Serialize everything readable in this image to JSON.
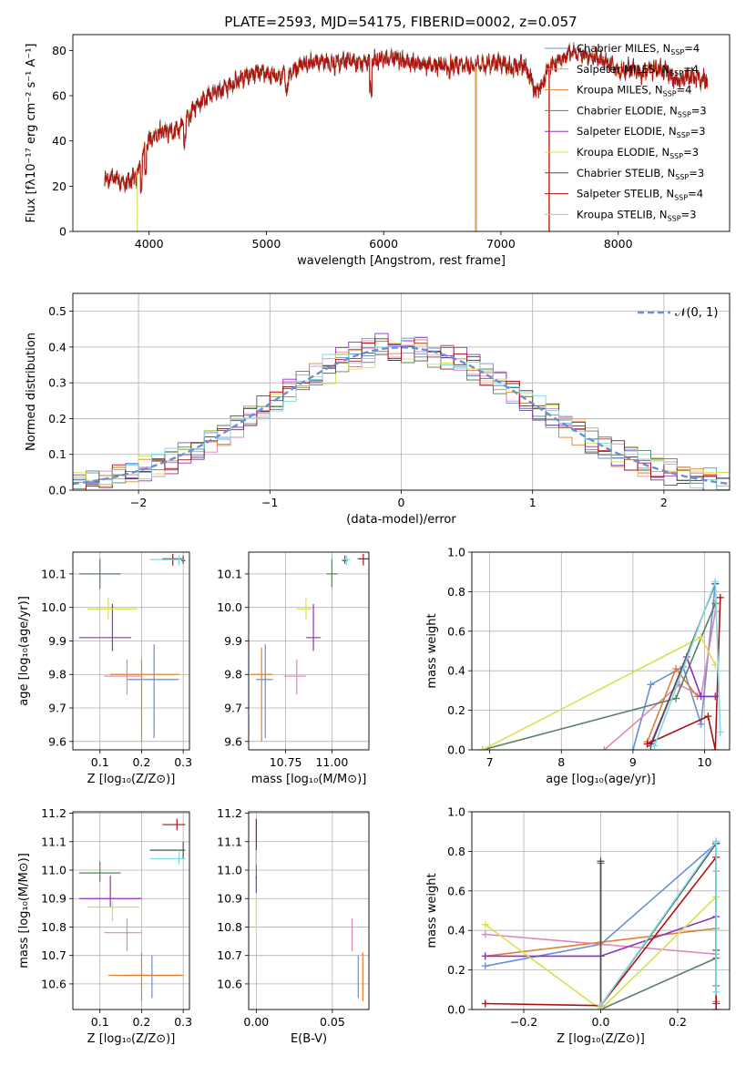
{
  "title": "PLATE=2593, MJD=54175, FIBERID=0002, z=0.057",
  "colors": [
    "#6a8ed8",
    "#e085b8",
    "#e08030",
    "#5a8060",
    "#9030c0",
    "#d8e050",
    "#505050",
    "#b01010",
    "#80d8e0"
  ],
  "chart_data": [
    {
      "id": "spectrum",
      "type": "line",
      "xlabel": "wavelength [Angstrom, rest frame]",
      "ylabel": "Flux [fλ10⁻¹⁷ erg cm⁻² s⁻¹ A⁻¹]",
      "xlim": [
        3350,
        8950
      ],
      "ylim": [
        0,
        87
      ],
      "xticks": [
        "4000",
        "5000",
        "6000",
        "7000",
        "8000"
      ],
      "yticks": [
        "0",
        "20",
        "40",
        "60",
        "80"
      ],
      "grid": false,
      "legend_position": "right",
      "continuum": {
        "x": [
          3620,
          3700,
          3800,
          3900,
          3950,
          4000,
          4100,
          4200,
          4300,
          4400,
          4500,
          4600,
          4700,
          4800,
          4900,
          5000,
          5100,
          5200,
          5300,
          5400,
          5500,
          5600,
          5700,
          5800,
          5900,
          6000,
          6100,
          6200,
          6300,
          6400,
          6500,
          6600,
          6700,
          6800,
          6900,
          7000,
          7100,
          7200,
          7300,
          7350,
          7400,
          7500,
          7600,
          7700,
          7800,
          7900,
          8000,
          8100,
          8200,
          8300,
          8400,
          8500,
          8600,
          8700,
          8760
        ],
        "y": [
          22,
          24,
          21,
          25,
          34,
          40,
          44,
          44,
          47,
          56,
          60,
          62,
          65,
          68,
          70,
          70,
          68,
          70,
          74,
          75,
          75,
          74,
          76,
          74,
          76,
          76,
          77,
          75,
          74,
          74,
          73,
          74,
          73,
          73,
          74,
          75,
          72,
          74,
          62,
          64,
          72,
          76,
          79,
          78,
          77,
          75,
          71,
          72,
          70,
          72,
          71,
          66,
          69,
          67,
          67
        ]
      },
      "legend": [
        {
          "main": "Chabrier MILES, N",
          "sub": "SSP",
          "tail": "=4"
        },
        {
          "main": "Salpeter MILES, N",
          "sub": "SSP",
          "tail": "=4"
        },
        {
          "main": "Kroupa MILES, N",
          "sub": "SSP",
          "tail": "=4"
        },
        {
          "main": "Chabrier ELODIE, N",
          "sub": "SSP",
          "tail": "=3"
        },
        {
          "main": "Salpeter ELODIE, N",
          "sub": "SSP",
          "tail": "=3"
        },
        {
          "main": "Kroupa ELODIE, N",
          "sub": "SSP",
          "tail": "=3"
        },
        {
          "main": "Chabrier STELIB, N",
          "sub": "SSP",
          "tail": "=3"
        },
        {
          "main": "Salpeter STELIB, N",
          "sub": "SSP",
          "tail": "=4"
        },
        {
          "main": "Kroupa STELIB, N",
          "sub": "SSP",
          "tail": "=3"
        }
      ],
      "drops": [
        {
          "x": 3900,
          "color": 5
        },
        {
          "x": 6780,
          "color": 5
        },
        {
          "x": 6790,
          "color": 2
        },
        {
          "x": 7410,
          "color": 7
        },
        {
          "x": 7415,
          "color": 2
        }
      ]
    },
    {
      "id": "residuals",
      "type": "area",
      "xlabel": "(data-model)/error",
      "ylabel": "Normed distribution",
      "xlim": [
        -2.5,
        2.5
      ],
      "ylim": [
        0,
        0.55
      ],
      "xticks": [
        "−2",
        "−1",
        "0",
        "1",
        "2"
      ],
      "yticks": [
        "0.0",
        "0.1",
        "0.2",
        "0.3",
        "0.4",
        "0.5"
      ],
      "grid": true,
      "legend_position": "top-right",
      "legend_label": "𝒩(0, 1)",
      "bin_width": 0.1
    },
    {
      "id": "age-vs-Z",
      "type": "scatter",
      "xlabel": "Z [log₁₀(Z/Z⊙)]",
      "ylabel": "age  [log₁₀(age/yr)]",
      "xlim": [
        0.035,
        0.315
      ],
      "ylim": [
        9.575,
        10.165
      ],
      "xticks": [
        "0.1",
        "0.2",
        "0.3"
      ],
      "yticks": [
        "9.6",
        "9.7",
        "9.8",
        "9.9",
        "10.0",
        "10.1"
      ],
      "grid": true,
      "points": [
        {
          "c": 0,
          "x": 0.23,
          "xe": [
            0.165,
            0.29
          ],
          "y": 9.785,
          "ye": [
            9.61,
            9.89
          ]
        },
        {
          "c": 1,
          "x": 0.165,
          "xe": [
            0.11,
            0.2
          ],
          "y": 9.795,
          "ye": [
            9.74,
            9.845
          ]
        },
        {
          "c": 2,
          "x": 0.2,
          "xe": [
            0.125,
            0.29
          ],
          "y": 9.8,
          "ye": [
            9.6,
            9.845
          ]
        },
        {
          "c": 3,
          "x": 0.1,
          "xe": [
            0.05,
            0.15
          ],
          "y": 10.1,
          "ye": [
            10.055,
            10.145
          ]
        },
        {
          "c": 4,
          "x": 0.13,
          "xe": [
            0.05,
            0.175
          ],
          "y": 9.91,
          "ye": [
            9.87,
            10.01
          ]
        },
        {
          "c": 5,
          "x": 0.12,
          "xe": [
            0.07,
            0.19
          ],
          "y": 9.995,
          "ye": [
            9.965,
            10.03
          ]
        },
        {
          "c": 6,
          "x": 0.3,
          "xe": [
            0.295,
            0.305
          ],
          "y": 10.14,
          "ye": [
            10.13,
            10.155
          ]
        },
        {
          "c": 7,
          "x": 0.275,
          "xe": [
            0.25,
            0.3
          ],
          "y": 10.145,
          "ye": [
            10.125,
            10.16
          ]
        },
        {
          "c": 8,
          "x": 0.29,
          "xe": [
            0.22,
            0.305
          ],
          "y": 10.143,
          "ye": [
            10.125,
            10.155
          ]
        }
      ]
    },
    {
      "id": "age-vs-mass",
      "type": "scatter",
      "xlabel": "mass [log₁₀(M/M⊙)]",
      "ylabel": "",
      "xlim": [
        10.55,
        11.2
      ],
      "ylim": [
        9.575,
        10.165
      ],
      "xticks": [
        "10.75",
        "11.00"
      ],
      "yticks": [
        "9.6",
        "9.7",
        "9.8",
        "9.9",
        "10.0",
        "10.1"
      ],
      "grid": true,
      "points": [
        {
          "c": 0,
          "x": 10.64,
          "xe": [
            10.59,
            10.68
          ],
          "y": 9.785,
          "ye": [
            9.61,
            9.89
          ]
        },
        {
          "c": 1,
          "x": 10.81,
          "xe": [
            10.74,
            10.86
          ],
          "y": 9.795,
          "ye": [
            9.74,
            9.845
          ]
        },
        {
          "c": 2,
          "x": 10.62,
          "xe": [
            10.56,
            10.68
          ],
          "y": 9.8,
          "ye": [
            9.6,
            9.88
          ]
        },
        {
          "c": 3,
          "x": 11.0,
          "xe": [
            10.97,
            11.03
          ],
          "y": 10.1,
          "ye": [
            10.06,
            10.145
          ]
        },
        {
          "c": 4,
          "x": 10.9,
          "xe": [
            10.86,
            10.94
          ],
          "y": 9.91,
          "ye": [
            9.87,
            10.01
          ]
        },
        {
          "c": 5,
          "x": 10.86,
          "xe": [
            10.81,
            10.89
          ],
          "y": 9.995,
          "ye": [
            9.965,
            10.03
          ]
        },
        {
          "c": 6,
          "x": 11.07,
          "xe": [
            11.055,
            11.085
          ],
          "y": 10.14,
          "ye": [
            10.13,
            10.155
          ]
        },
        {
          "c": 7,
          "x": 11.17,
          "xe": [
            11.14,
            11.2
          ],
          "y": 10.145,
          "ye": [
            10.125,
            10.16
          ]
        },
        {
          "c": 8,
          "x": 11.08,
          "xe": [
            11.055,
            11.1
          ],
          "y": 10.143,
          "ye": [
            10.125,
            10.155
          ]
        }
      ]
    },
    {
      "id": "weights-vs-age",
      "type": "line",
      "xlabel": "age  [log₁₀(age/yr)]",
      "ylabel": "mass weight",
      "xlim": [
        6.75,
        10.35
      ],
      "ylim": [
        0,
        1.0
      ],
      "xticks": [
        "7",
        "8",
        "9",
        "10"
      ],
      "yticks": [
        "0.0",
        "0.2",
        "0.4",
        "0.6",
        "0.8",
        "1.0"
      ],
      "grid": true,
      "series": [
        {
          "c": 0,
          "x": [
            9.0,
            9.25,
            9.7,
            9.95,
            10.15
          ],
          "y": [
            0.0,
            0.33,
            0.42,
            0.13,
            0.84
          ]
        },
        {
          "c": 1,
          "x": [
            8.6,
            9.65,
            9.95,
            10.15
          ],
          "y": [
            0.0,
            0.33,
            0.27,
            0.7
          ]
        },
        {
          "c": 2,
          "x": [
            9.2,
            9.6,
            9.9,
            10.15
          ],
          "y": [
            0.04,
            0.41,
            0.27,
            0.27
          ]
        },
        {
          "c": 3,
          "x": [
            6.9,
            9.6,
            10.15
          ],
          "y": [
            0.0,
            0.26,
            0.74
          ]
        },
        {
          "c": 4,
          "x": [
            9.25,
            9.75,
            9.95,
            10.15
          ],
          "y": [
            0.03,
            0.47,
            0.27,
            0.27
          ]
        },
        {
          "c": 5,
          "x": [
            6.9,
            9.95,
            10.15
          ],
          "y": [
            0.0,
            0.57,
            0.43
          ]
        },
        {
          "c": 6,
          "x": [
            9.25,
            10.15
          ],
          "y": [
            0.02,
            0.84
          ]
        },
        {
          "c": 7,
          "x": [
            9.2,
            10.05,
            10.15,
            10.22
          ],
          "y": [
            0.03,
            0.17,
            0.0,
            0.77
          ]
        },
        {
          "c": 8,
          "x": [
            9.3,
            10.15,
            10.22
          ],
          "y": [
            0.02,
            0.85,
            0.09
          ]
        }
      ]
    },
    {
      "id": "mass-vs-Z",
      "type": "scatter",
      "xlabel": "Z [log₁₀(Z/Z⊙)]",
      "ylabel": "mass [log₁₀(M/M⊙)]",
      "xlim": [
        0.035,
        0.315
      ],
      "ylim": [
        10.51,
        11.205
      ],
      "xticks": [
        "0.1",
        "0.2",
        "0.3"
      ],
      "yticks": [
        "10.6",
        "10.7",
        "10.8",
        "10.9",
        "11.0",
        "11.1",
        "11.2"
      ],
      "grid": true,
      "points": [
        {
          "c": 0,
          "x": 0.225,
          "xe": [
            0.16,
            0.295
          ],
          "y": 10.63,
          "ye": [
            10.55,
            10.7
          ]
        },
        {
          "c": 1,
          "x": 0.165,
          "xe": [
            0.11,
            0.2
          ],
          "y": 10.78,
          "ye": [
            10.715,
            10.83
          ]
        },
        {
          "c": 2,
          "x": 0.2,
          "xe": [
            0.12,
            0.3
          ],
          "y": 10.63,
          "ye": [
            10.54,
            10.71
          ]
        },
        {
          "c": 3,
          "x": 0.1,
          "xe": [
            0.05,
            0.15
          ],
          "y": 10.99,
          "ye": [
            10.96,
            11.03
          ]
        },
        {
          "c": 4,
          "x": 0.125,
          "xe": [
            0.05,
            0.2
          ],
          "y": 10.9,
          "ye": [
            10.87,
            10.98
          ]
        },
        {
          "c": 5,
          "x": 0.13,
          "xe": [
            0.07,
            0.195
          ],
          "y": 10.87,
          "ye": [
            10.82,
            10.89
          ]
        },
        {
          "c": 6,
          "x": 0.3,
          "xe": [
            0.22,
            0.305
          ],
          "y": 11.07,
          "ye": [
            11.04,
            11.1
          ]
        },
        {
          "c": 7,
          "x": 0.285,
          "xe": [
            0.25,
            0.305
          ],
          "y": 11.16,
          "ye": [
            11.14,
            11.18
          ]
        },
        {
          "c": 8,
          "x": 0.29,
          "xe": [
            0.22,
            0.305
          ],
          "y": 11.04,
          "ye": [
            11.02,
            11.065
          ]
        }
      ]
    },
    {
      "id": "mass-vs-ebv",
      "type": "scatter",
      "xlabel": "E(B-V)",
      "ylabel": "",
      "xlim": [
        -0.005,
        0.074
      ],
      "ylim": [
        10.51,
        11.205
      ],
      "xticks": [
        "0.00",
        "0.05"
      ],
      "yticks": [
        "10.6",
        "10.7",
        "10.8",
        "10.9",
        "11.0",
        "11.1",
        "11.2"
      ],
      "grid": true,
      "points": [
        {
          "c": 0,
          "x": 0.067,
          "xe": [
            0.067,
            0.067
          ],
          "y": 10.63,
          "ye": [
            10.55,
            10.7
          ]
        },
        {
          "c": 1,
          "x": 0.063,
          "xe": [
            0.063,
            0.063
          ],
          "y": 10.77,
          "ye": [
            10.715,
            10.83
          ]
        },
        {
          "c": 2,
          "x": 0.07,
          "xe": [
            0.07,
            0.07
          ],
          "y": 10.63,
          "ye": [
            10.54,
            10.71
          ]
        },
        {
          "c": 3,
          "x": 0.0,
          "xe": [
            0.0,
            0.0
          ],
          "y": 11.0,
          "ye": [
            10.97,
            11.03
          ]
        },
        {
          "c": 4,
          "x": 0.0,
          "xe": [
            0.0,
            0.0
          ],
          "y": 10.95,
          "ye": [
            10.92,
            10.98
          ]
        },
        {
          "c": 5,
          "x": 0.0,
          "xe": [
            0.0,
            0.0
          ],
          "y": 10.85,
          "ye": [
            10.78,
            10.9
          ]
        },
        {
          "c": 6,
          "x": 0.0,
          "xe": [
            0.0,
            0.0
          ],
          "y": 11.06,
          "ye": [
            11.03,
            11.1
          ]
        },
        {
          "c": 7,
          "x": 0.0,
          "xe": [
            0.0,
            0.0
          ],
          "y": 11.15,
          "ye": [
            11.1,
            11.18
          ]
        },
        {
          "c": 8,
          "x": 0.0,
          "xe": [
            0.0,
            0.0
          ],
          "y": 11.05,
          "ye": [
            11.02,
            11.07
          ]
        }
      ]
    },
    {
      "id": "weights-vs-Z",
      "type": "line",
      "xlabel": "Z [log₁₀(Z/Z⊙)]",
      "ylabel": "mass weight",
      "xlim": [
        -0.335,
        0.335
      ],
      "ylim": [
        0,
        1.0
      ],
      "xticks": [
        "−0.2",
        "0.0",
        "0.2"
      ],
      "yticks": [
        "0.0",
        "0.2",
        "0.4",
        "0.6",
        "0.8",
        "1.0"
      ],
      "grid": true,
      "series": [
        {
          "c": 0,
          "x": [
            -0.3,
            0.0,
            0.3,
            0.3
          ],
          "y": [
            0.22,
            0.33,
            0.84,
            0.12
          ]
        },
        {
          "c": 1,
          "x": [
            -0.3,
            0.3,
            0.3
          ],
          "y": [
            0.38,
            0.28,
            0.7
          ]
        },
        {
          "c": 2,
          "x": [
            -0.3,
            0.0,
            0.3,
            0.3
          ],
          "y": [
            0.27,
            0.34,
            0.41,
            0.04
          ]
        },
        {
          "c": 3,
          "x": [
            0.0,
            0.0,
            0.3,
            0.3
          ],
          "y": [
            0.74,
            0.0,
            0.26,
            0.85
          ]
        },
        {
          "c": 4,
          "x": [
            -0.3,
            0.0,
            0.3,
            0.3
          ],
          "y": [
            0.27,
            0.27,
            0.47,
            0.03
          ]
        },
        {
          "c": 5,
          "x": [
            -0.3,
            0.0,
            0.3,
            0.3
          ],
          "y": [
            0.43,
            0.0,
            0.57,
            0.0
          ]
        },
        {
          "c": 6,
          "x": [
            0.0,
            0.0,
            0.3,
            0.3
          ],
          "y": [
            0.75,
            0.02,
            0.84,
            0.3
          ]
        },
        {
          "c": 7,
          "x": [
            -0.3,
            0.0,
            0.3,
            0.3
          ],
          "y": [
            0.03,
            0.02,
            0.77,
            0.0
          ]
        },
        {
          "c": 8,
          "x": [
            0.0,
            0.3,
            0.3
          ],
          "y": [
            0.02,
            0.85,
            0.09
          ]
        }
      ]
    }
  ]
}
